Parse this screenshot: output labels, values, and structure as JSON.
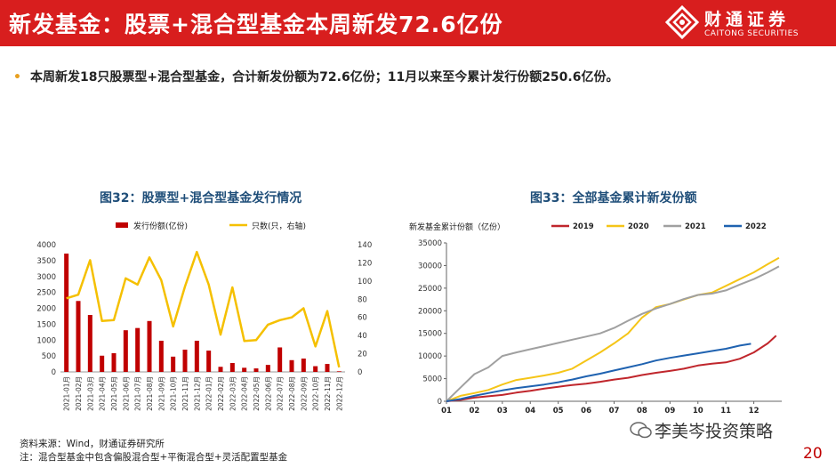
{
  "header": {
    "title": "新发基金：股票+混合型基金本周新发72.6亿份",
    "logo_cn": "财通证券",
    "logo_en": "CAITONG SECURITIES"
  },
  "bullet": "本周新发18只股票型+混合型基金，合计新发份额为72.6亿份；11月以来至今累计发行份额250.6亿份。",
  "figure32_title": "图32：股票型+混合型基金发行情况",
  "figure33_title": "图33：全部基金累计新发份额",
  "source": "资料来源：Wind，财通证券研究所",
  "note": "注：混合型基金中包含偏股混合型+平衡混合型+灵活配置型基金",
  "page_number": "20",
  "watermark": "李美岑投资策略",
  "colors": {
    "brand_red": "#d81e1e",
    "bar": "#c00000",
    "line": "#f5c000",
    "y2019": "#c0262c",
    "y2020": "#f5c518",
    "y2021": "#a0a0a0",
    "y2022": "#1f62b0"
  },
  "chart_data": [
    {
      "type": "bar",
      "title": "图32：股票型+混合型基金发行情况",
      "categories": [
        "2021-01月",
        "2021-02月",
        "2021-03月",
        "2021-04月",
        "2021-05月",
        "2021-06月",
        "2021-07月",
        "2021-08月",
        "2021-09月",
        "2021-10月",
        "2021-11月",
        "2021-12月",
        "2022-01月",
        "2022-02月",
        "2022-03月",
        "2022-04月",
        "2022-05月",
        "2022-06月",
        "2022-07月",
        "2022-08月",
        "2022-09月",
        "2022-10月",
        "2022-11月",
        "2022-12月"
      ],
      "series": [
        {
          "name": "发行份额(亿份)",
          "kind": "bar",
          "axis": "left",
          "values": [
            3720,
            2230,
            1790,
            510,
            590,
            1310,
            1380,
            1600,
            980,
            480,
            700,
            980,
            670,
            160,
            280,
            130,
            110,
            220,
            770,
            370,
            420,
            180,
            250,
            20
          ]
        },
        {
          "name": "只数(只，右轴)",
          "kind": "line",
          "axis": "right",
          "values": [
            81,
            85,
            123,
            56,
            57,
            103,
            96,
            126,
            101,
            50,
            94,
            132,
            96,
            41,
            93,
            34,
            35,
            52,
            57,
            60,
            70,
            28,
            67,
            5
          ]
        }
      ],
      "ylim": [
        0,
        4000
      ],
      "yticks": [
        "0",
        "500",
        "1000",
        "1500",
        "2000",
        "2500",
        "3000",
        "3500",
        "4000"
      ],
      "y2lim": [
        0,
        140
      ],
      "y2ticks": [
        "0",
        "20",
        "40",
        "60",
        "80",
        "100",
        "120",
        "140"
      ]
    },
    {
      "type": "line",
      "title": "图33：全部基金累计新发份额",
      "ylabel": "新发基金累计份额（亿份）",
      "xticks": [
        "01",
        "02",
        "03",
        "04",
        "05",
        "06",
        "07",
        "08",
        "09",
        "10",
        "11",
        "12"
      ],
      "ylim": [
        0,
        35000
      ],
      "yticks": [
        "0",
        "5000",
        "10000",
        "15000",
        "20000",
        "25000",
        "30000",
        "35000"
      ],
      "series": [
        {
          "name": "2019",
          "x": [
            1,
            1.5,
            2,
            2.5,
            3,
            3.5,
            4,
            4.5,
            5,
            5.5,
            6,
            6.5,
            7,
            7.5,
            8,
            8.5,
            9,
            9.5,
            10,
            10.5,
            11,
            11.5,
            12,
            12.5,
            12.8
          ],
          "values": [
            0,
            300,
            800,
            1100,
            1400,
            1900,
            2300,
            2800,
            3200,
            3600,
            3900,
            4300,
            4800,
            5200,
            5800,
            6300,
            6700,
            7200,
            7900,
            8300,
            8600,
            9400,
            10800,
            12800,
            14500
          ]
        },
        {
          "name": "2020",
          "x": [
            1,
            1.5,
            2,
            2.5,
            3,
            3.5,
            4,
            4.5,
            5,
            5.5,
            6,
            6.5,
            7,
            7.5,
            8,
            8.5,
            9,
            9.5,
            10,
            10.5,
            11,
            11.5,
            12,
            12.5,
            12.9
          ],
          "values": [
            0,
            1200,
            1800,
            2500,
            3700,
            4700,
            5200,
            5700,
            6300,
            7200,
            9000,
            10800,
            12800,
            15000,
            18500,
            20800,
            21500,
            22500,
            23500,
            24000,
            25500,
            27000,
            28500,
            30300,
            31700
          ]
        },
        {
          "name": "2021",
          "x": [
            1,
            1.5,
            2,
            2.5,
            3,
            3.5,
            4,
            4.5,
            5,
            5.5,
            6,
            6.5,
            7,
            7.5,
            8,
            8.5,
            9,
            9.5,
            10,
            10.5,
            11,
            11.5,
            12,
            12.5,
            12.9
          ],
          "values": [
            0,
            3000,
            6000,
            7500,
            10000,
            10800,
            11500,
            12200,
            12900,
            13600,
            14300,
            15000,
            16200,
            17800,
            19300,
            20500,
            21500,
            22600,
            23500,
            23800,
            24500,
            25800,
            27000,
            28500,
            29800
          ]
        },
        {
          "name": "2022",
          "x": [
            1,
            1.5,
            2,
            2.5,
            3,
            3.5,
            4,
            4.5,
            5,
            5.5,
            6,
            6.5,
            7,
            7.5,
            8,
            8.5,
            9,
            9.5,
            10,
            10.5,
            11,
            11.5,
            11.9
          ],
          "values": [
            0,
            500,
            1200,
            1800,
            2400,
            2900,
            3300,
            3700,
            4200,
            4800,
            5500,
            6100,
            6800,
            7500,
            8200,
            9000,
            9600,
            10100,
            10600,
            11100,
            11600,
            12300,
            12700
          ]
        }
      ]
    }
  ]
}
